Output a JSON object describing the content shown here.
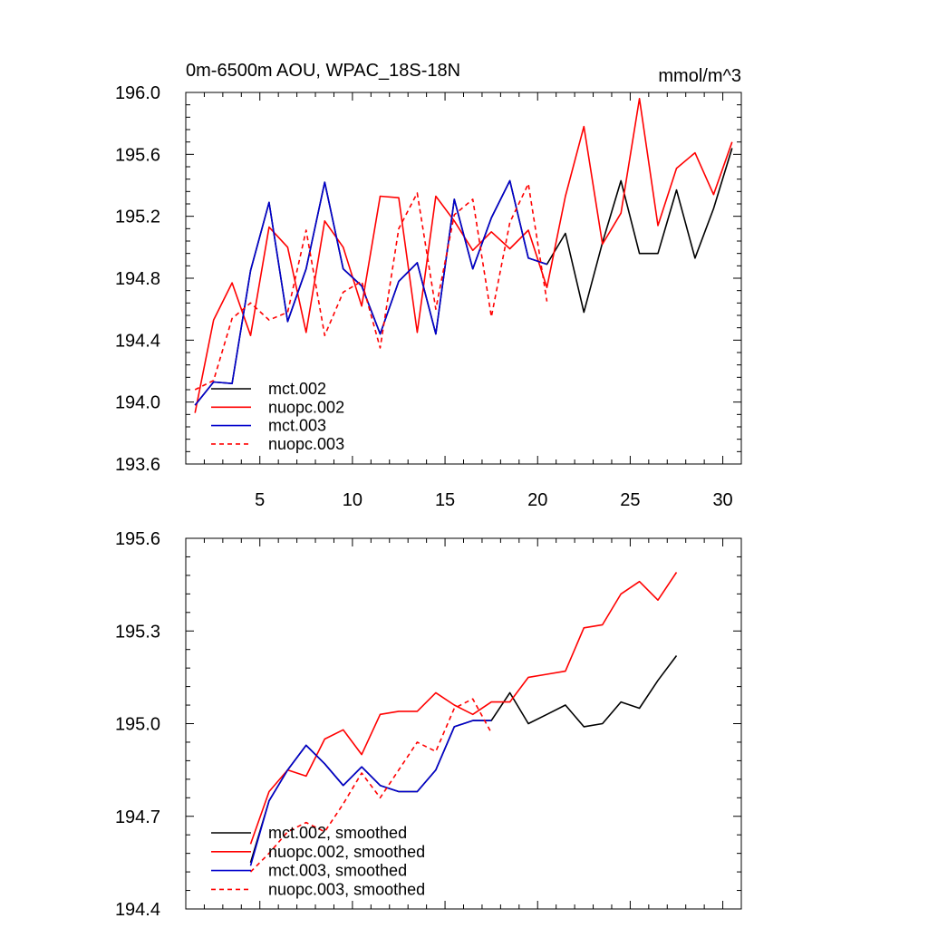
{
  "chart_data": [
    {
      "type": "line",
      "title": "0m-6500m AOU, WPAC_18S-18N",
      "units": "mmol/m^3",
      "xlabel": "",
      "ylabel": "",
      "xlim": [
        1,
        31
      ],
      "ylim": [
        193.6,
        196.0
      ],
      "xticks": [
        5,
        10,
        15,
        20,
        25,
        30
      ],
      "xtick_labels": [
        "5",
        "10",
        "15",
        "20",
        "25",
        "30"
      ],
      "yticks": [
        193.6,
        194.0,
        194.4,
        194.8,
        195.2,
        195.6,
        196.0
      ],
      "ytick_labels": [
        "193.6",
        "194.0",
        "194.4",
        "194.8",
        "195.2",
        "195.6",
        "196.0"
      ],
      "grid": false,
      "legend_position": "bottom-left",
      "series": [
        {
          "name": "mct.002",
          "color": "#000000",
          "dash": "solid",
          "x": [
            1.5,
            2.5,
            3.5,
            4.5,
            5.5,
            6.5,
            7.5,
            8.5,
            9.5,
            10.5,
            11.5,
            12.5,
            13.5,
            14.5,
            15.5,
            16.5,
            17.5,
            18.5,
            19.5,
            20.5,
            21.5,
            22.5,
            23.5,
            24.5,
            25.5,
            26.5,
            27.5,
            28.5,
            29.5,
            30.5
          ],
          "values": [
            193.98,
            194.13,
            194.12,
            194.85,
            195.29,
            194.52,
            194.86,
            195.42,
            194.86,
            194.75,
            194.44,
            194.78,
            194.9,
            194.44,
            195.31,
            194.86,
            195.19,
            195.43,
            194.93,
            194.89,
            195.09,
            194.58,
            195.03,
            195.43,
            194.96,
            194.96,
            195.37,
            194.93,
            195.25,
            195.64
          ]
        },
        {
          "name": "nuopc.002",
          "color": "#ff0000",
          "dash": "solid",
          "x": [
            1.5,
            2.5,
            3.5,
            4.5,
            5.5,
            6.5,
            7.5,
            8.5,
            9.5,
            10.5,
            11.5,
            12.5,
            13.5,
            14.5,
            15.5,
            16.5,
            17.5,
            18.5,
            19.5,
            20.5,
            21.5,
            22.5,
            23.5,
            24.5,
            25.5,
            26.5,
            27.5,
            28.5,
            29.5,
            30.5
          ],
          "values": [
            193.93,
            194.53,
            194.77,
            194.43,
            195.13,
            195.0,
            194.45,
            195.17,
            195.0,
            194.62,
            195.33,
            195.32,
            194.45,
            195.33,
            195.17,
            194.98,
            195.1,
            194.99,
            195.11,
            194.74,
            195.33,
            195.78,
            195.02,
            195.22,
            195.96,
            195.14,
            195.51,
            195.61,
            195.34,
            195.68
          ]
        },
        {
          "name": "mct.003",
          "color": "#0000cc",
          "dash": "solid",
          "x": [
            1.5,
            2.5,
            3.5,
            4.5,
            5.5,
            6.5,
            7.5,
            8.5,
            9.5,
            10.5,
            11.5,
            12.5,
            13.5,
            14.5,
            15.5,
            16.5,
            17.5,
            18.5,
            19.5,
            20.5
          ],
          "values": [
            193.98,
            194.13,
            194.12,
            194.85,
            195.29,
            194.52,
            194.86,
            195.42,
            194.86,
            194.75,
            194.44,
            194.78,
            194.9,
            194.44,
            195.31,
            194.86,
            195.19,
            195.43,
            194.93,
            194.89
          ]
        },
        {
          "name": "nuopc.003",
          "color": "#ff0000",
          "dash": "dashed",
          "x": [
            1.5,
            2.5,
            3.5,
            4.5,
            5.5,
            6.5,
            7.5,
            8.5,
            9.5,
            10.5,
            11.5,
            12.5,
            13.5,
            14.5,
            15.5,
            16.5,
            17.5,
            18.5,
            19.5,
            20.5
          ],
          "values": [
            194.08,
            194.14,
            194.54,
            194.64,
            194.53,
            194.58,
            195.11,
            194.43,
            194.71,
            194.78,
            194.35,
            195.12,
            195.35,
            194.6,
            195.21,
            195.31,
            194.55,
            195.16,
            195.41,
            194.65
          ]
        }
      ]
    },
    {
      "type": "line",
      "title": "",
      "xlabel": "",
      "ylabel": "",
      "xlim": [
        1,
        31
      ],
      "ylim": [
        194.4,
        195.6
      ],
      "xticks": [
        5,
        10,
        15,
        20,
        25,
        30
      ],
      "xtick_labels": [],
      "yticks": [
        194.4,
        194.7,
        195.0,
        195.3,
        195.6
      ],
      "ytick_labels": [
        "194.4",
        "194.7",
        "195.0",
        "195.3",
        "195.6"
      ],
      "grid": false,
      "legend_position": "bottom-left",
      "series": [
        {
          "name": "mct.002, smoothed",
          "color": "#000000",
          "dash": "solid",
          "x": [
            4.5,
            5.5,
            6.5,
            7.5,
            8.5,
            9.5,
            10.5,
            11.5,
            12.5,
            13.5,
            14.5,
            15.5,
            16.5,
            17.5,
            18.5,
            19.5,
            20.5,
            21.5,
            22.5,
            23.5,
            24.5,
            25.5,
            26.5,
            27.5
          ],
          "values": [
            194.55,
            194.75,
            194.85,
            194.93,
            194.87,
            194.8,
            194.86,
            194.8,
            194.78,
            194.78,
            194.85,
            194.99,
            195.01,
            195.01,
            195.1,
            195.0,
            195.03,
            195.06,
            194.99,
            195.0,
            195.07,
            195.05,
            195.14,
            195.22
          ]
        },
        {
          "name": "nuopc.002, smoothed",
          "color": "#ff0000",
          "dash": "solid",
          "x": [
            4.5,
            5.5,
            6.5,
            7.5,
            8.5,
            9.5,
            10.5,
            11.5,
            12.5,
            13.5,
            14.5,
            15.5,
            16.5,
            17.5,
            18.5,
            19.5,
            20.5,
            21.5,
            22.5,
            23.5,
            24.5,
            25.5,
            26.5,
            27.5
          ],
          "values": [
            194.61,
            194.78,
            194.85,
            194.83,
            194.95,
            194.98,
            194.9,
            195.03,
            195.04,
            195.04,
            195.1,
            195.06,
            195.03,
            195.07,
            195.07,
            195.15,
            195.16,
            195.17,
            195.31,
            195.32,
            195.42,
            195.46,
            195.4,
            195.49
          ]
        },
        {
          "name": "mct.003, smoothed",
          "color": "#0000cc",
          "dash": "solid",
          "x": [
            4.5,
            5.5,
            6.5,
            7.5,
            8.5,
            9.5,
            10.5,
            11.5,
            12.5,
            13.5,
            14.5,
            15.5,
            16.5,
            17.5
          ],
          "values": [
            194.54,
            194.75,
            194.85,
            194.93,
            194.87,
            194.8,
            194.86,
            194.8,
            194.78,
            194.78,
            194.85,
            194.99,
            195.01,
            195.01
          ]
        },
        {
          "name": "nuopc.003, smoothed",
          "color": "#ff0000",
          "dash": "dashed",
          "x": [
            4.5,
            5.5,
            6.5,
            7.5,
            8.5,
            9.5,
            10.5,
            11.5,
            12.5,
            13.5,
            14.5,
            15.5,
            16.5,
            17.5
          ],
          "values": [
            194.52,
            194.58,
            194.65,
            194.68,
            194.65,
            194.74,
            194.84,
            194.76,
            194.85,
            194.94,
            194.91,
            195.05,
            195.08,
            194.97
          ]
        }
      ]
    }
  ]
}
